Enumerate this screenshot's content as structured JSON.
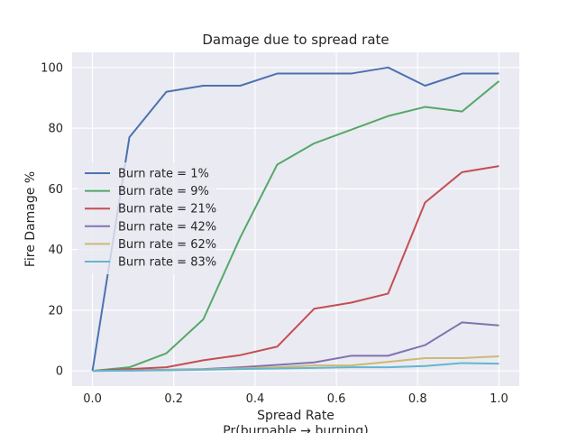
{
  "chart_data": {
    "type": "line",
    "title": "Damage due to spread rate",
    "xlabel": "Spread Rate",
    "xlabel2": "Pr(burnable → burning)",
    "ylabel": "Fire Damage %",
    "xlim": [
      -0.05,
      1.05
    ],
    "ylim": [
      -5,
      105
    ],
    "xticks": [
      0.0,
      0.2,
      0.4,
      0.6,
      0.8,
      1.0
    ],
    "xtick_labels": [
      "0.0",
      "0.2",
      "0.4",
      "0.6",
      "0.8",
      "1.0"
    ],
    "yticks": [
      0,
      20,
      40,
      60,
      80,
      100
    ],
    "ytick_labels": [
      "0",
      "20",
      "40",
      "60",
      "80",
      "100"
    ],
    "grid": true,
    "legend_position": "center-left",
    "x": [
      0.0,
      0.0909,
      0.1818,
      0.2727,
      0.3636,
      0.4545,
      0.5455,
      0.6364,
      0.7273,
      0.8182,
      0.9091,
      1.0
    ],
    "series": [
      {
        "name": "Burn rate = 1%",
        "color": "#4c72b0",
        "values": [
          0,
          77,
          92,
          94,
          94,
          98,
          98,
          98,
          100,
          94,
          98,
          98
        ]
      },
      {
        "name": "Burn rate = 9%",
        "color": "#55a868",
        "values": [
          0,
          1.2,
          5.8,
          17,
          44,
          68,
          75,
          79.5,
          84,
          87,
          85.5,
          95.5
        ]
      },
      {
        "name": "Burn rate = 21%",
        "color": "#c44e52",
        "values": [
          0,
          0.6,
          1.2,
          3.5,
          5.2,
          8,
          20.5,
          22.5,
          25.5,
          55.5,
          65.5,
          67.5
        ]
      },
      {
        "name": "Burn rate = 42%",
        "color": "#8172b2",
        "values": [
          0,
          0.2,
          0.4,
          0.6,
          1.2,
          2,
          2.8,
          5,
          5,
          8.5,
          16,
          15
        ]
      },
      {
        "name": "Burn rate = 62%",
        "color": "#ccb974",
        "values": [
          0,
          0.1,
          0.3,
          0.5,
          0.8,
          1.2,
          1.8,
          1.8,
          3,
          4.2,
          4.2,
          4.8
        ]
      },
      {
        "name": "Burn rate = 83%",
        "color": "#64b5cd",
        "values": [
          0,
          0.1,
          0.2,
          0.4,
          0.6,
          0.8,
          1.0,
          1.2,
          1.2,
          1.6,
          2.6,
          2.4
        ]
      }
    ]
  }
}
